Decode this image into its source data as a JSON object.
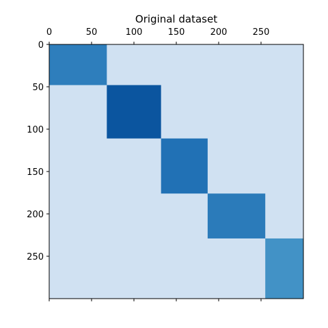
{
  "chart_data": {
    "type": "matrix",
    "title": "Original dataset",
    "xlim": [
      0,
      300
    ],
    "ylim": [
      300,
      0
    ],
    "xticks": [
      0,
      50,
      100,
      150,
      200,
      250
    ],
    "yticks": [
      0,
      50,
      100,
      150,
      200,
      250
    ],
    "background_color": "#d0e1f2",
    "blocks": [
      {
        "rows": [
          0,
          48
        ],
        "cols": [
          0,
          68
        ],
        "color": "#2e7ebc"
      },
      {
        "rows": [
          48,
          111
        ],
        "cols": [
          68,
          132
        ],
        "color": "#0b559f"
      },
      {
        "rows": [
          111,
          176
        ],
        "cols": [
          132,
          187
        ],
        "color": "#2171b5"
      },
      {
        "rows": [
          176,
          229
        ],
        "cols": [
          187,
          255
        ],
        "color": "#2b7bba"
      },
      {
        "rows": [
          229,
          300
        ],
        "cols": [
          255,
          300
        ],
        "color": "#4292c6"
      }
    ]
  }
}
